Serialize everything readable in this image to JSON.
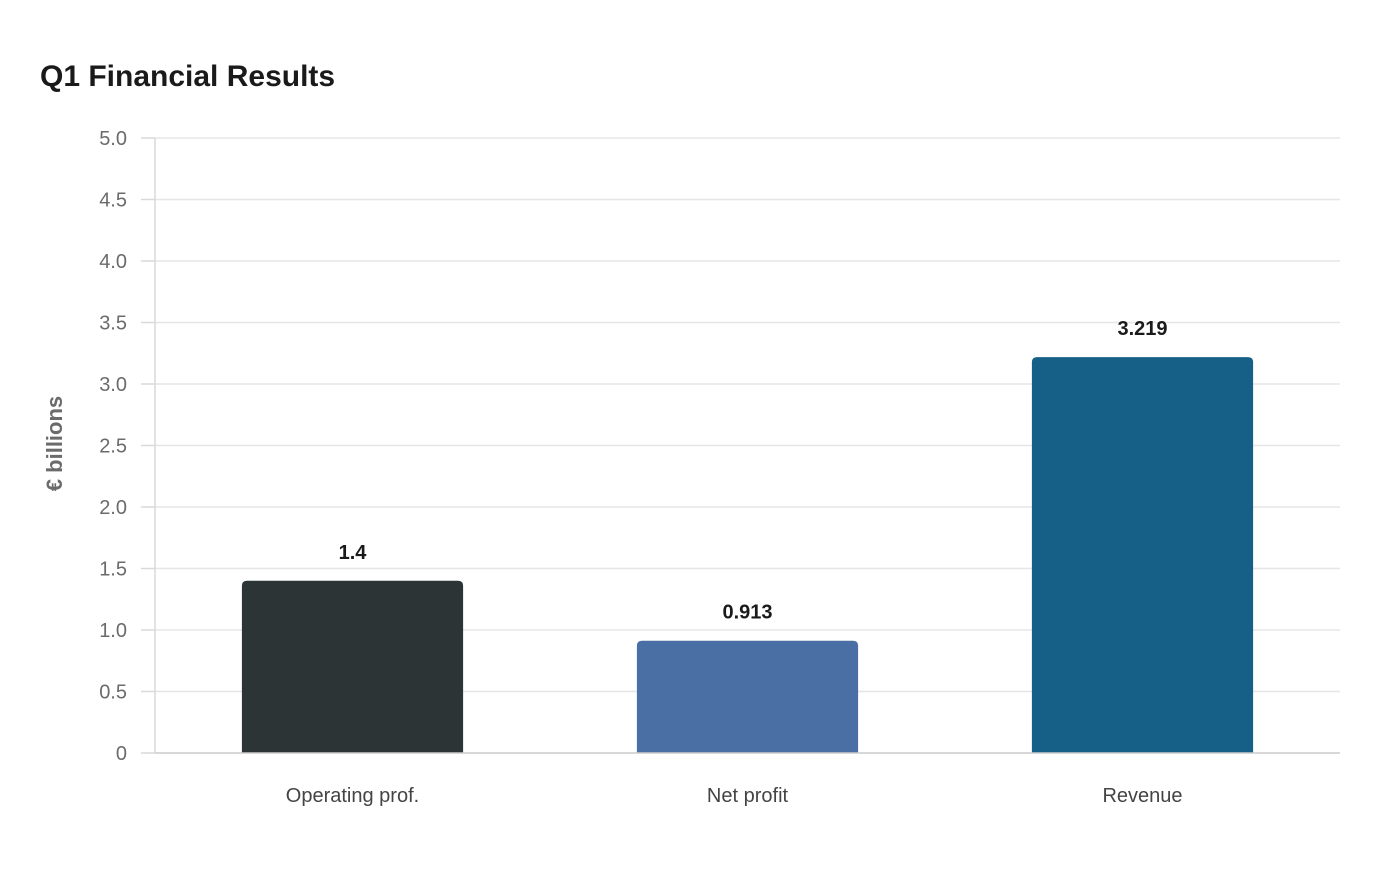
{
  "chart_data": {
    "type": "bar",
    "title": "Q1 Financial Results",
    "xlabel": "",
    "ylabel": "€ billions",
    "categories": [
      "Operating prof.",
      "Net profit",
      "Revenue"
    ],
    "values": [
      1.4,
      0.913,
      3.219
    ],
    "value_labels": [
      "1.4",
      "0.913",
      "3.219"
    ],
    "bar_colors": [
      "#2d3436",
      "#4a6fa5",
      "#166088"
    ],
    "ylim": [
      0,
      5.0
    ],
    "yticks": [
      0,
      0.5,
      1.0,
      1.5,
      2.0,
      2.5,
      3.0,
      3.5,
      4.0,
      4.5,
      5.0
    ],
    "ytick_labels": [
      "0",
      "0.5",
      "1.0",
      "1.5",
      "2.0",
      "2.5",
      "3.0",
      "3.5",
      "4.0",
      "4.5",
      "5.0"
    ],
    "grid": true,
    "legend": "none"
  }
}
